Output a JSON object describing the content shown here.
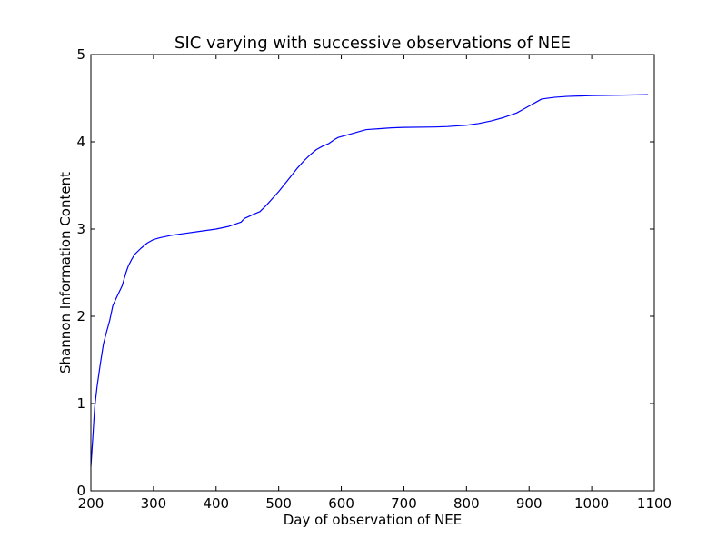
{
  "chart_data": {
    "type": "line",
    "title": "SIC varying with successive observations of NEE",
    "xlabel": "Day of observation of NEE",
    "ylabel": "Shannon Information Content",
    "xlim": [
      200,
      1100
    ],
    "ylim": [
      0,
      5
    ],
    "xticks": [
      "200",
      "300",
      "400",
      "500",
      "600",
      "700",
      "800",
      "900",
      "1000",
      "1100"
    ],
    "yticks": [
      "0",
      "1",
      "2",
      "3",
      "4",
      "5"
    ],
    "grid": false,
    "legend": "none",
    "series": [
      {
        "color": "#0000ff",
        "x": [
          200,
          203,
          206,
          210,
          215,
          220,
          225,
          230,
          235,
          240,
          250,
          256,
          260,
          265,
          270,
          280,
          290,
          300,
          310,
          330,
          350,
          370,
          400,
          420,
          440,
          445,
          460,
          470,
          480,
          490,
          500,
          510,
          520,
          530,
          540,
          550,
          560,
          570,
          580,
          590,
          595,
          610,
          620,
          630,
          640,
          660,
          680,
          700,
          750,
          770,
          800,
          820,
          840,
          860,
          880,
          890,
          900,
          910,
          920,
          940,
          960,
          980,
          1000,
          1050,
          1090
        ],
        "y": [
          0.28,
          0.6,
          0.95,
          1.2,
          1.45,
          1.68,
          1.82,
          1.95,
          2.12,
          2.2,
          2.35,
          2.5,
          2.58,
          2.65,
          2.71,
          2.78,
          2.84,
          2.88,
          2.9,
          2.93,
          2.95,
          2.97,
          3.0,
          3.03,
          3.08,
          3.12,
          3.17,
          3.2,
          3.27,
          3.35,
          3.43,
          3.52,
          3.61,
          3.7,
          3.78,
          3.85,
          3.91,
          3.95,
          3.98,
          4.03,
          4.05,
          4.08,
          4.1,
          4.12,
          4.14,
          4.15,
          4.16,
          4.165,
          4.17,
          4.175,
          4.19,
          4.21,
          4.24,
          4.28,
          4.33,
          4.37,
          4.41,
          4.45,
          4.49,
          4.51,
          4.52,
          4.525,
          4.53,
          4.535,
          4.54
        ]
      }
    ]
  }
}
